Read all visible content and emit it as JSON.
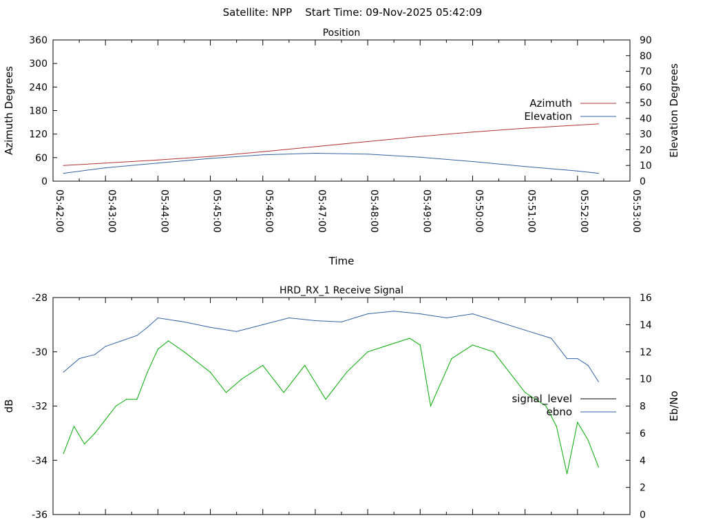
{
  "header": {
    "title": "Satellite: NPP    Start Time: 09-Nov-2025 05:42:09"
  },
  "chart_data": [
    {
      "type": "line",
      "title": "Position",
      "xlabel": "Time",
      "ylabel": "Azimuth Degrees",
      "y2label": "Elevation Degrees",
      "ylim": [
        0,
        360
      ],
      "y2lim": [
        0,
        90
      ],
      "yticks": [
        0,
        60,
        120,
        180,
        240,
        300,
        360
      ],
      "y2ticks": [
        0,
        10,
        20,
        30,
        40,
        50,
        60,
        70,
        80,
        90
      ],
      "xlim_minutes": [
        0,
        11
      ],
      "xtick_labels": [
        "05:42:00",
        "05:43:00",
        "05:44:00",
        "05:45:00",
        "05:46:00",
        "05:47:00",
        "05:48:00",
        "05:49:00",
        "05:50:00",
        "05:51:00",
        "05:52:00",
        "05:53:00"
      ],
      "legend": "right",
      "series": [
        {
          "name": "Azimuth",
          "axis": "left",
          "color": "#b03030",
          "x_minutes": [
            0.2,
            1,
            2,
            3,
            4,
            5,
            6,
            7,
            8,
            9,
            10,
            10.4
          ],
          "values": [
            40,
            46,
            54,
            63,
            75,
            88,
            101,
            114,
            125,
            135,
            143,
            146
          ]
        },
        {
          "name": "Elevation",
          "axis": "right",
          "color": "#3060a0",
          "x_minutes": [
            0.2,
            1,
            2,
            3,
            4,
            5,
            6,
            7,
            8,
            9,
            10,
            10.4
          ],
          "values": [
            5,
            8.5,
            11.5,
            14.5,
            16.8,
            17.8,
            17.2,
            15.3,
            12.5,
            9.3,
            6.5,
            5
          ]
        }
      ]
    },
    {
      "type": "line",
      "title": "HRD_RX_1 Receive Signal",
      "xlabel": "",
      "ylabel": "dB",
      "y2label": "Eb/No",
      "ylim": [
        -36,
        -28
      ],
      "y2lim": [
        0,
        16
      ],
      "yticks": [
        -36,
        -34,
        -32,
        -30,
        -28
      ],
      "y2ticks": [
        0,
        2,
        4,
        6,
        8,
        10,
        12,
        14,
        16
      ],
      "xlim_minutes": [
        0,
        11
      ],
      "legend": "right",
      "series": [
        {
          "name": "signal_level",
          "axis": "left",
          "color": "#000000",
          "x_minutes": [],
          "values": []
        },
        {
          "name": "ebno",
          "axis": "right",
          "color": "#3060a0",
          "x_minutes": [
            0.2,
            0.5,
            0.8,
            1.0,
            1.3,
            1.6,
            1.8,
            2.0,
            2.5,
            3.0,
            3.5,
            4.0,
            4.5,
            5.0,
            5.5,
            6.0,
            6.5,
            7.0,
            7.5,
            8.0,
            8.5,
            9.0,
            9.5,
            9.8,
            10.0,
            10.2,
            10.4
          ],
          "values": [
            10.5,
            11.5,
            11.8,
            12.4,
            12.8,
            13.2,
            13.8,
            14.5,
            14.2,
            13.8,
            13.5,
            14.0,
            14.5,
            14.3,
            14.2,
            14.8,
            15.0,
            14.8,
            14.5,
            14.8,
            14.2,
            13.6,
            13.0,
            11.5,
            11.5,
            11.0,
            9.8
          ]
        },
        {
          "name": "",
          "axis": "right",
          "color": "#00aa00",
          "x_minutes": [
            0.2,
            0.4,
            0.6,
            0.8,
            1.0,
            1.2,
            1.4,
            1.6,
            1.8,
            2.0,
            2.2,
            2.5,
            3.0,
            3.3,
            3.6,
            4.0,
            4.4,
            4.8,
            5.2,
            5.6,
            6.0,
            6.4,
            6.8,
            7.0,
            7.2,
            7.6,
            8.0,
            8.4,
            8.8,
            9.0,
            9.4,
            9.6,
            9.8,
            10.0,
            10.2,
            10.4
          ],
          "values": [
            4.5,
            6.5,
            5.2,
            6.0,
            7.0,
            8.0,
            8.5,
            8.5,
            10.5,
            12.2,
            12.8,
            12.0,
            10.5,
            9.0,
            10.0,
            11.0,
            9.0,
            11.0,
            8.5,
            10.5,
            12.0,
            12.5,
            13.0,
            12.5,
            8.0,
            11.5,
            12.5,
            12.0,
            10.0,
            9.0,
            8.0,
            6.5,
            3.0,
            6.8,
            5.5,
            3.5
          ]
        }
      ]
    }
  ]
}
